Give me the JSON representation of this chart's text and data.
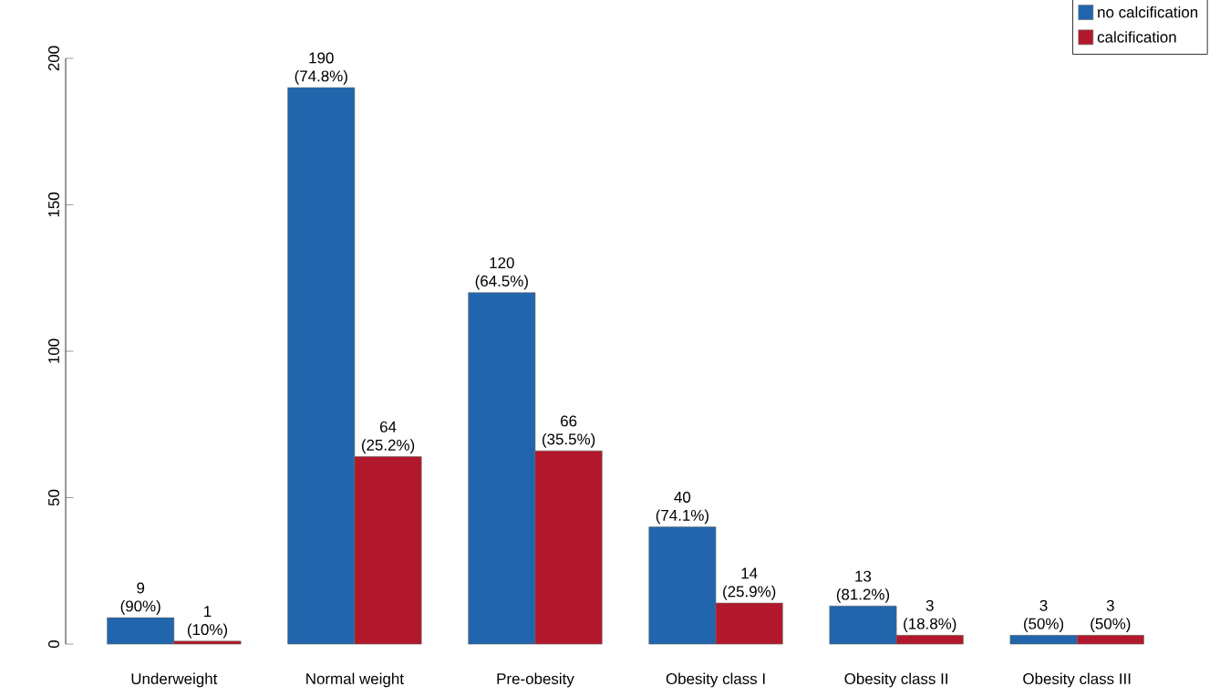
{
  "chart_data": {
    "type": "bar",
    "categories": [
      "Underweight",
      "Normal weight",
      "Pre-obesity",
      "Obesity class I",
      "Obesity class II",
      "Obesity class III"
    ],
    "series": [
      {
        "name": "no calcification",
        "color": "#2166ac",
        "values": [
          9,
          190,
          120,
          40,
          13,
          3
        ],
        "value_labels": [
          "9 (90%)",
          "190 (74.8%)",
          "120 (64.5%)",
          "40 (74.1%)",
          "13 (81.2%)",
          "3 (50%)"
        ]
      },
      {
        "name": "calcification",
        "color": "#b2182b",
        "values": [
          1,
          64,
          66,
          14,
          3,
          3
        ],
        "value_labels": [
          "1 (10%)",
          "64 (25.2%)",
          "66 (35.5%)",
          "14 (25.9%)",
          "3 (18.8%)",
          "3 (50%)"
        ]
      }
    ],
    "ylim": [
      0,
      200
    ],
    "yticks": [
      0,
      50,
      100,
      150,
      200
    ],
    "grid": false,
    "legend": "top right"
  }
}
